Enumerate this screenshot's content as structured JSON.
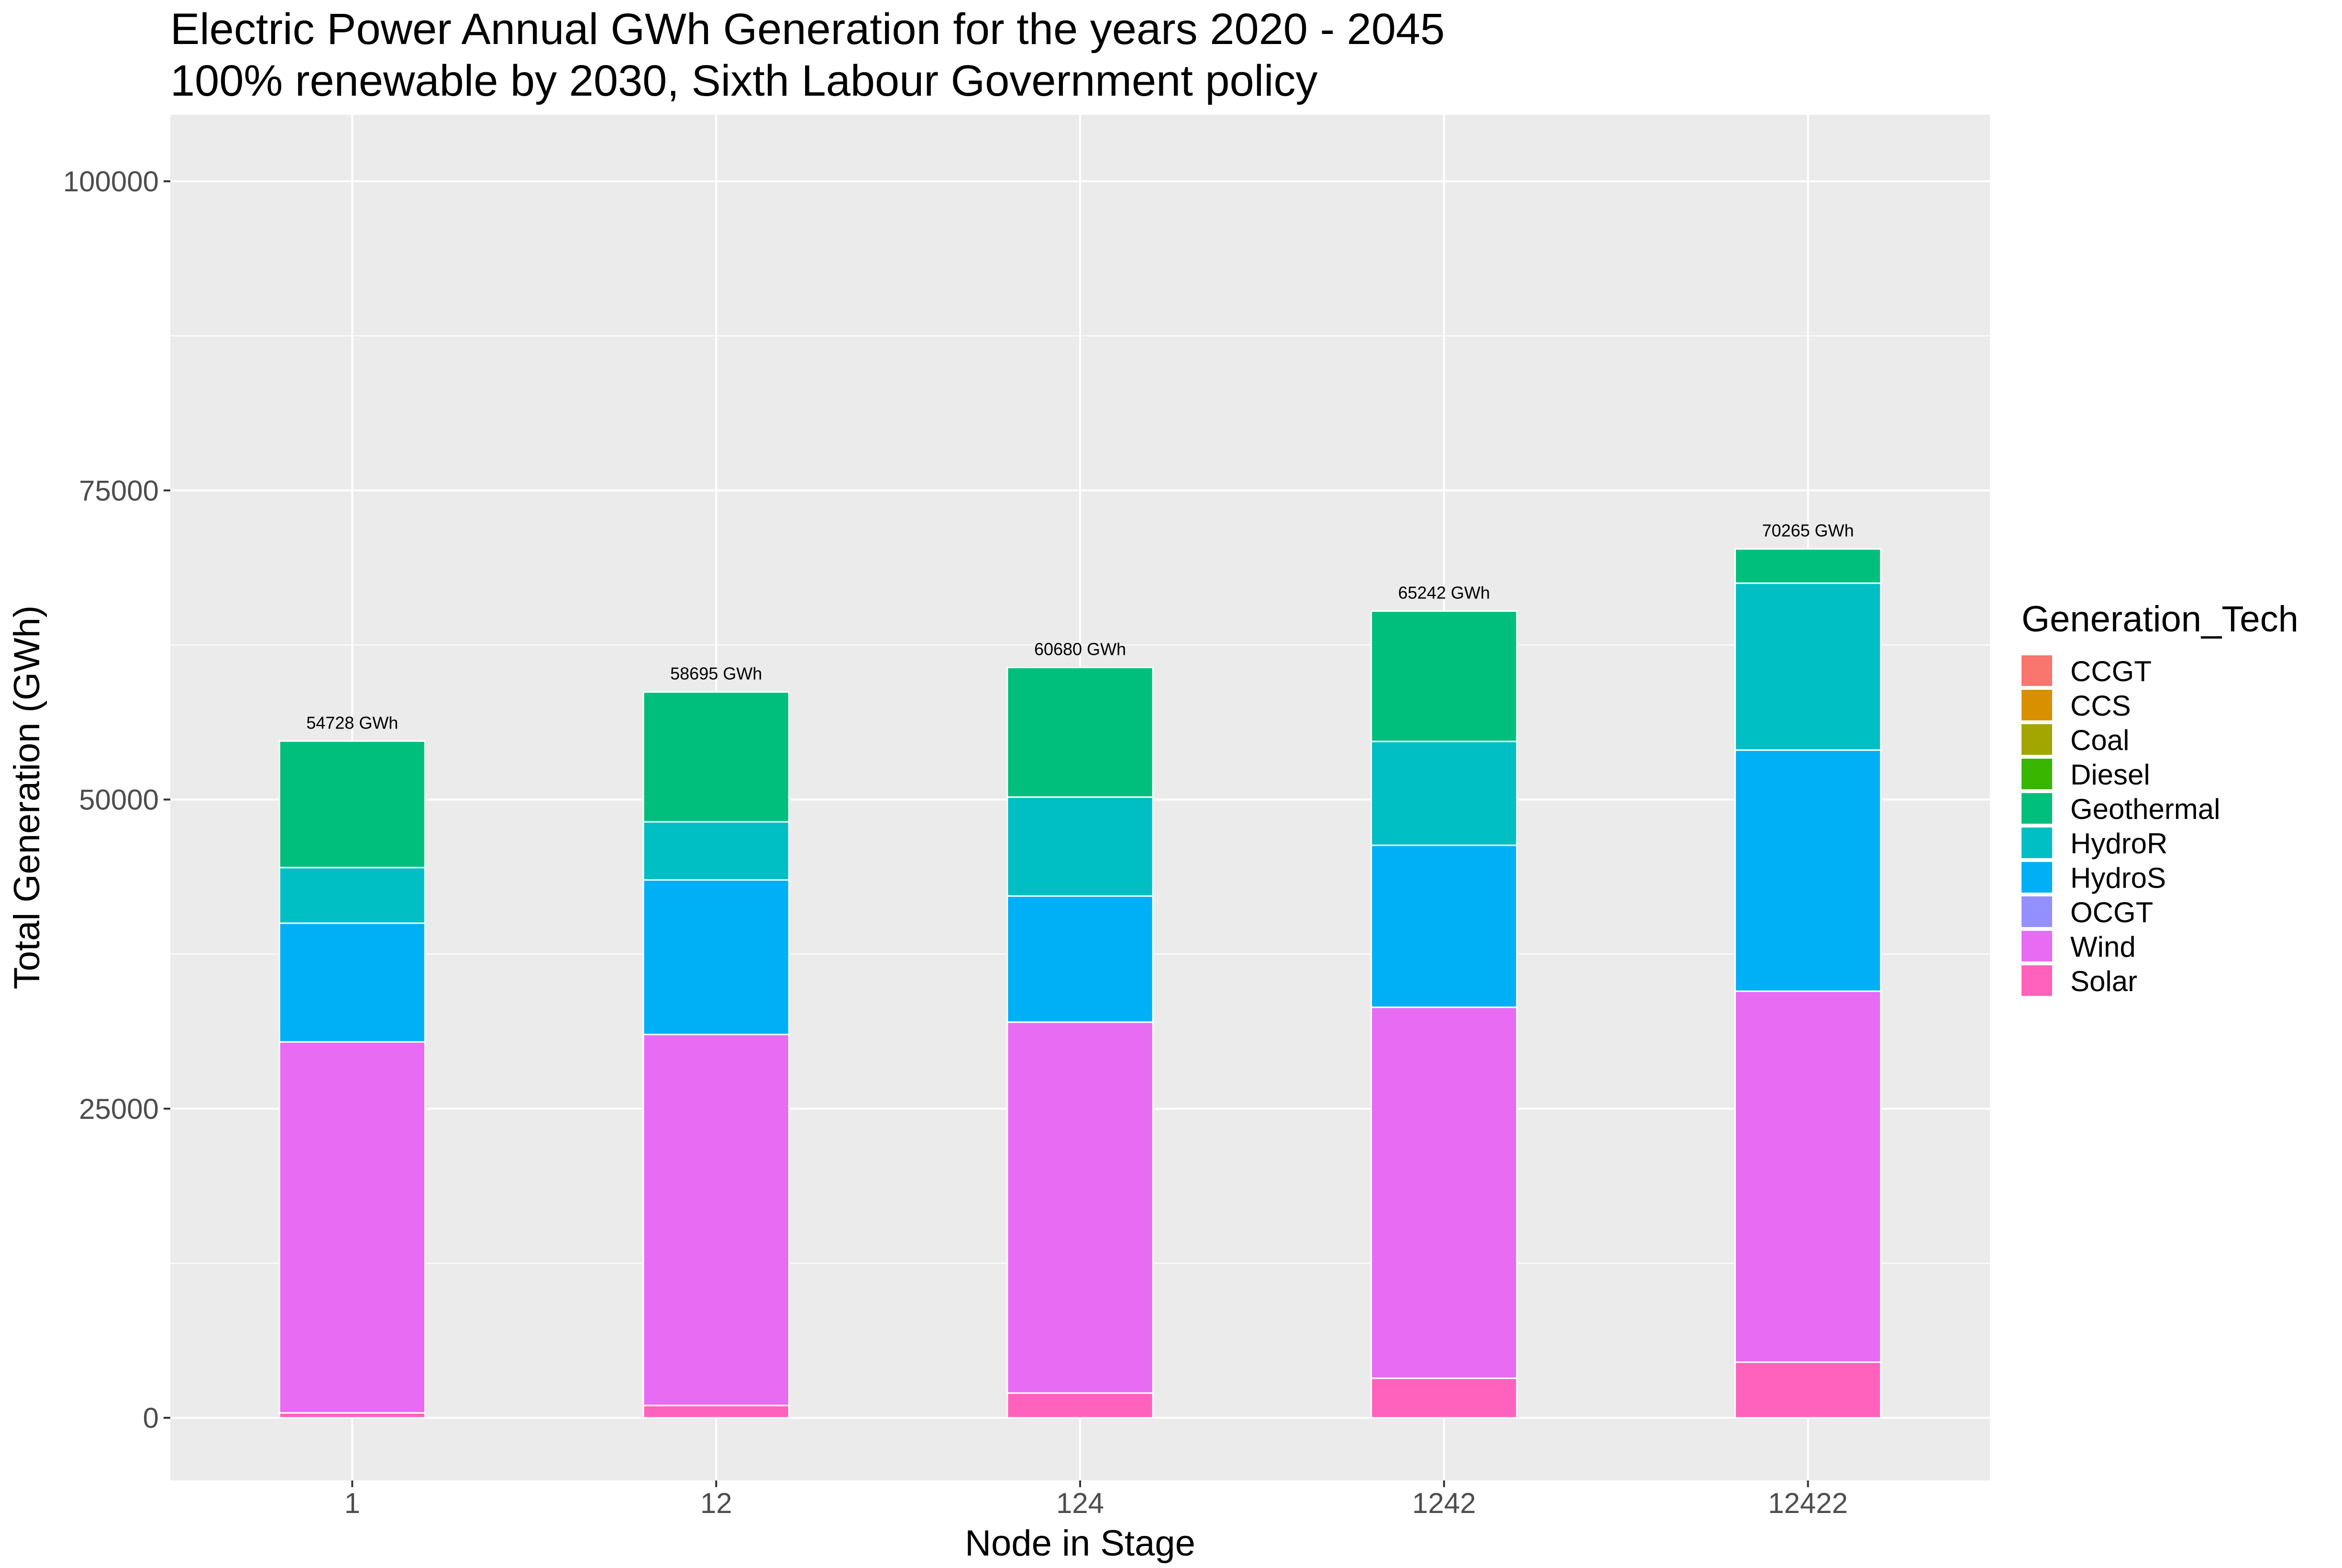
{
  "chart_data": {
    "type": "bar",
    "stacked": true,
    "title": "Electric Power Annual GWh Generation for the years 2020 - 2045",
    "subtitle": "100% renewable by 2030, Sixth Labour Government policy",
    "xlabel": "Node in Stage",
    "ylabel": "Total Generation (GWh)",
    "ylim": [
      -4800,
      104500
    ],
    "yticks": [
      0,
      25000,
      50000,
      75000,
      100000
    ],
    "grid": true,
    "legend": {
      "title": "Generation_Tech",
      "position": "right"
    },
    "categories": [
      "1",
      "12",
      "124",
      "1242",
      "12422"
    ],
    "series": [
      {
        "name": "CCGT",
        "color": "#F8766D",
        "values": [
          0,
          0,
          0,
          0,
          0
        ]
      },
      {
        "name": "CCS",
        "color": "#D89000",
        "values": [
          0,
          0,
          0,
          0,
          0
        ]
      },
      {
        "name": "Coal",
        "color": "#A3A500",
        "values": [
          0,
          0,
          0,
          0,
          0
        ]
      },
      {
        "name": "Diesel",
        "color": "#39B600",
        "values": [
          0,
          0,
          0,
          0,
          0
        ]
      },
      {
        "name": "Geothermal",
        "color": "#00BF7D",
        "values": [
          10228,
          10495,
          10480,
          10542,
          2765
        ]
      },
      {
        "name": "HydroR",
        "color": "#00BFC4",
        "values": [
          4500,
          4700,
          8000,
          8400,
          13500
        ]
      },
      {
        "name": "HydroS",
        "color": "#00B0F6",
        "values": [
          9600,
          12500,
          10200,
          13100,
          19500
        ]
      },
      {
        "name": "OCGT",
        "color": "#9590FF",
        "values": [
          0,
          0,
          0,
          0,
          0
        ]
      },
      {
        "name": "Wind",
        "color": "#E76BF3",
        "values": [
          30000,
          30000,
          30000,
          30000,
          30000
        ]
      },
      {
        "name": "Solar",
        "color": "#FF62BC",
        "values": [
          400,
          1000,
          2000,
          3200,
          4500
        ]
      }
    ],
    "stack_order_bottom_to_top": [
      "Solar",
      "Wind",
      "OCGT",
      "HydroS",
      "HydroR",
      "Geothermal",
      "Diesel",
      "Coal",
      "CCS",
      "CCGT"
    ],
    "totals": [
      54728,
      58695,
      60680,
      65242,
      70265
    ],
    "total_labels": [
      "54728 GWh",
      "58695 GWh",
      "60680 GWh",
      "65242 GWh",
      "70265 GWh"
    ]
  },
  "colors": {
    "panel_background": "#EBEBEB",
    "grid_line": "#FFFFFF",
    "tick_text": "#4D4D4D",
    "bar_outline": "#FFFFFF"
  }
}
